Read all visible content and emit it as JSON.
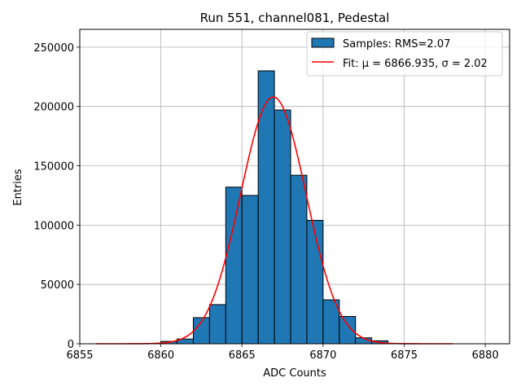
{
  "chart_data": {
    "type": "bar",
    "title": "Run 551, channel081, Pedestal",
    "xlabel": "ADC Counts",
    "ylabel": "Entries",
    "xlim": [
      6855,
      6881.5
    ],
    "ylim": [
      0,
      265000
    ],
    "xticks": [
      6855,
      6860,
      6865,
      6870,
      6875,
      6880
    ],
    "yticks": [
      0,
      50000,
      100000,
      150000,
      200000,
      250000
    ],
    "grid": true,
    "legend_position": "top-right",
    "histogram": {
      "name": "Samples: RMS=2.07",
      "color": "#1f77b4",
      "edgecolor": "#000000",
      "bin_width": 1,
      "bin_starts": [
        6860,
        6861,
        6862,
        6863,
        6864,
        6865,
        6866,
        6867,
        6868,
        6869,
        6870,
        6871,
        6872,
        6873
      ],
      "values": [
        2000,
        4000,
        22000,
        33000,
        132000,
        125000,
        230000,
        197000,
        142000,
        104000,
        37000,
        23000,
        5000,
        2500
      ]
    },
    "fit": {
      "name": "Fit: μ = 6866.935, σ = 2.02",
      "color": "#ff0000",
      "mu": 6866.935,
      "sigma": 2.02,
      "amplitude": 208000,
      "x_range": [
        6856,
        6878
      ]
    }
  }
}
